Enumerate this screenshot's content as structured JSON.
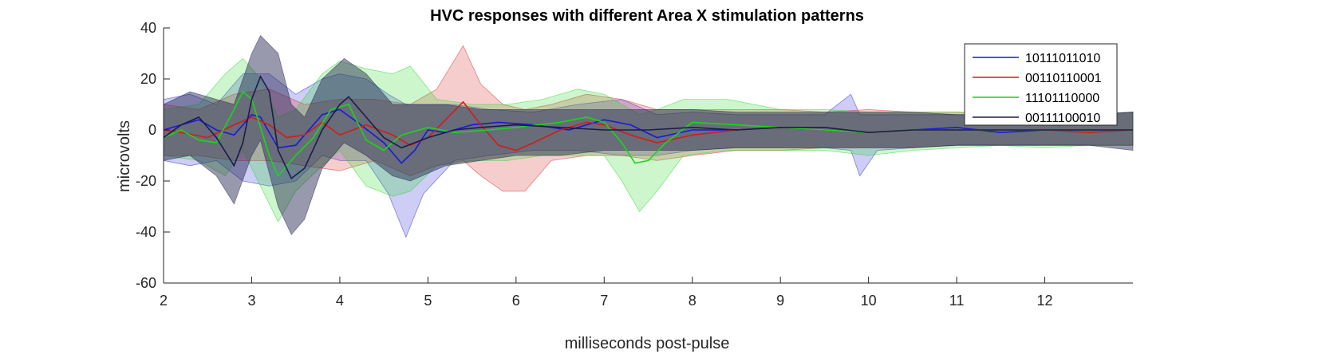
{
  "chart_data": {
    "type": "line",
    "title": "HVC responses with different Area X stimulation patterns",
    "xlabel": "milliseconds post-pulse",
    "ylabel": "microvolts",
    "xlim": [
      2,
      13
    ],
    "ylim": [
      -60,
      40
    ],
    "xticks": [
      2,
      3,
      4,
      5,
      6,
      7,
      8,
      9,
      10,
      11,
      12
    ],
    "yticks": [
      -60,
      -40,
      -20,
      0,
      20,
      40
    ],
    "grid": false,
    "legend": "top-right",
    "series": [
      {
        "name": "10111011010",
        "color": "#1a1ad6",
        "mean": [
          [
            2.0,
            0
          ],
          [
            2.2,
            2
          ],
          [
            2.4,
            4
          ],
          [
            2.6,
            0
          ],
          [
            2.8,
            -2
          ],
          [
            3.0,
            6
          ],
          [
            3.1,
            5
          ],
          [
            3.3,
            -7
          ],
          [
            3.5,
            -6
          ],
          [
            3.8,
            6
          ],
          [
            4.0,
            8
          ],
          [
            4.2,
            3
          ],
          [
            4.5,
            -5
          ],
          [
            4.7,
            -13
          ],
          [
            4.85,
            -8
          ],
          [
            5.0,
            0
          ],
          [
            5.2,
            -1
          ],
          [
            5.5,
            2
          ],
          [
            5.8,
            3
          ],
          [
            6.2,
            2
          ],
          [
            6.6,
            0
          ],
          [
            7.0,
            4
          ],
          [
            7.3,
            2
          ],
          [
            7.6,
            -3
          ],
          [
            8.0,
            0
          ],
          [
            8.5,
            0
          ],
          [
            9.0,
            1
          ],
          [
            9.5,
            0
          ],
          [
            10.0,
            -1
          ],
          [
            10.5,
            0
          ],
          [
            11.0,
            1
          ],
          [
            11.5,
            -1
          ],
          [
            12.0,
            0
          ],
          [
            12.5,
            0
          ],
          [
            13.0,
            0
          ]
        ],
        "band": [
          [
            2.0,
            -12,
            12
          ],
          [
            2.3,
            -14,
            14
          ],
          [
            2.6,
            -12,
            10
          ],
          [
            2.9,
            -20,
            22
          ],
          [
            3.2,
            -22,
            22
          ],
          [
            3.5,
            -20,
            14
          ],
          [
            3.8,
            -10,
            20
          ],
          [
            4.0,
            -12,
            22
          ],
          [
            4.3,
            -12,
            20
          ],
          [
            4.55,
            -25,
            14
          ],
          [
            4.75,
            -42,
            10
          ],
          [
            4.95,
            -25,
            10
          ],
          [
            5.3,
            -12,
            10
          ],
          [
            5.7,
            -10,
            8
          ],
          [
            6.2,
            -8,
            7
          ],
          [
            6.7,
            -8,
            10
          ],
          [
            7.2,
            -10,
            12
          ],
          [
            7.6,
            -10,
            6
          ],
          [
            8.0,
            -8,
            7
          ],
          [
            8.5,
            -7,
            6
          ],
          [
            9.0,
            -7,
            6
          ],
          [
            9.5,
            -7,
            6
          ],
          [
            9.8,
            -8,
            14
          ],
          [
            9.9,
            -18,
            6
          ],
          [
            10.1,
            -8,
            6
          ],
          [
            10.5,
            -7,
            6
          ],
          [
            11.0,
            -6,
            6
          ],
          [
            11.5,
            -6,
            6
          ],
          [
            12.0,
            -6,
            6
          ],
          [
            12.5,
            -6,
            6
          ],
          [
            13.0,
            -6,
            7
          ]
        ]
      },
      {
        "name": "00110110001",
        "color": "#d61a1a",
        "mean": [
          [
            2.0,
            0
          ],
          [
            2.2,
            -1
          ],
          [
            2.5,
            -3
          ],
          [
            2.8,
            2
          ],
          [
            3.0,
            5
          ],
          [
            3.2,
            2
          ],
          [
            3.4,
            -3
          ],
          [
            3.6,
            -2
          ],
          [
            3.8,
            3
          ],
          [
            4.0,
            -2
          ],
          [
            4.3,
            2
          ],
          [
            4.6,
            -2
          ],
          [
            4.8,
            -6
          ],
          [
            5.0,
            -3
          ],
          [
            5.2,
            4
          ],
          [
            5.4,
            11
          ],
          [
            5.6,
            2
          ],
          [
            5.8,
            -6
          ],
          [
            6.0,
            -8
          ],
          [
            6.2,
            -5
          ],
          [
            6.5,
            0
          ],
          [
            6.8,
            3
          ],
          [
            7.0,
            2
          ],
          [
            7.3,
            -2
          ],
          [
            7.6,
            -5
          ],
          [
            8.0,
            -2
          ],
          [
            8.5,
            0
          ],
          [
            9.0,
            1
          ],
          [
            9.5,
            0
          ],
          [
            10.0,
            -1
          ],
          [
            10.5,
            0
          ],
          [
            11.0,
            0
          ],
          [
            11.5,
            0
          ],
          [
            12.0,
            0
          ],
          [
            12.5,
            -1
          ],
          [
            13.0,
            0
          ]
        ],
        "band": [
          [
            2.0,
            -10,
            10
          ],
          [
            2.4,
            -10,
            8
          ],
          [
            2.8,
            -12,
            14
          ],
          [
            3.2,
            -12,
            16
          ],
          [
            3.6,
            -14,
            10
          ],
          [
            4.0,
            -16,
            12
          ],
          [
            4.4,
            -12,
            12
          ],
          [
            4.8,
            -18,
            10
          ],
          [
            5.1,
            -14,
            16
          ],
          [
            5.4,
            -12,
            33
          ],
          [
            5.6,
            -18,
            18
          ],
          [
            5.85,
            -24,
            10
          ],
          [
            6.1,
            -24,
            8
          ],
          [
            6.4,
            -12,
            10
          ],
          [
            6.8,
            -10,
            14
          ],
          [
            7.2,
            -10,
            12
          ],
          [
            7.6,
            -12,
            8
          ],
          [
            8.0,
            -10,
            8
          ],
          [
            8.5,
            -8,
            8
          ],
          [
            9.0,
            -8,
            8
          ],
          [
            9.5,
            -7,
            7
          ],
          [
            10.0,
            -7,
            8
          ],
          [
            10.5,
            -7,
            7
          ],
          [
            11.0,
            -6,
            7
          ],
          [
            11.5,
            -6,
            6
          ],
          [
            12.0,
            -6,
            6
          ],
          [
            12.5,
            -6,
            6
          ],
          [
            13.0,
            -6,
            7
          ]
        ]
      },
      {
        "name": "11101110000",
        "color": "#1ad61a",
        "mean": [
          [
            2.0,
            -3
          ],
          [
            2.2,
            0
          ],
          [
            2.4,
            -4
          ],
          [
            2.6,
            -5
          ],
          [
            2.8,
            8
          ],
          [
            2.9,
            15
          ],
          [
            3.0,
            12
          ],
          [
            3.2,
            -10
          ],
          [
            3.3,
            -18
          ],
          [
            3.5,
            -10
          ],
          [
            3.7,
            -3
          ],
          [
            3.9,
            8
          ],
          [
            4.1,
            10
          ],
          [
            4.3,
            -4
          ],
          [
            4.5,
            -8
          ],
          [
            4.7,
            -2
          ],
          [
            5.0,
            1
          ],
          [
            5.3,
            -1
          ],
          [
            5.7,
            0
          ],
          [
            6.0,
            1
          ],
          [
            6.5,
            3
          ],
          [
            6.8,
            5
          ],
          [
            7.0,
            3
          ],
          [
            7.2,
            -5
          ],
          [
            7.35,
            -13
          ],
          [
            7.5,
            -12
          ],
          [
            7.7,
            -5
          ],
          [
            8.0,
            3
          ],
          [
            8.5,
            2
          ],
          [
            9.0,
            1
          ],
          [
            9.5,
            0
          ],
          [
            10.0,
            -1
          ],
          [
            10.5,
            0
          ],
          [
            11.0,
            0
          ],
          [
            11.5,
            0
          ],
          [
            12.0,
            0
          ],
          [
            12.5,
            0
          ],
          [
            13.0,
            0
          ]
        ],
        "band": [
          [
            2.0,
            -10,
            8
          ],
          [
            2.4,
            -12,
            10
          ],
          [
            2.7,
            -18,
            22
          ],
          [
            2.9,
            -8,
            28
          ],
          [
            3.1,
            -22,
            20
          ],
          [
            3.3,
            -36,
            5
          ],
          [
            3.5,
            -24,
            8
          ],
          [
            3.8,
            -14,
            22
          ],
          [
            4.0,
            -8,
            27
          ],
          [
            4.3,
            -22,
            24
          ],
          [
            4.6,
            -26,
            22
          ],
          [
            4.8,
            -24,
            25
          ],
          [
            5.1,
            -14,
            12
          ],
          [
            5.5,
            -12,
            10
          ],
          [
            5.9,
            -12,
            10
          ],
          [
            6.3,
            -10,
            12
          ],
          [
            6.7,
            -10,
            16
          ],
          [
            7.0,
            -10,
            14
          ],
          [
            7.2,
            -20,
            10
          ],
          [
            7.4,
            -32,
            6
          ],
          [
            7.6,
            -24,
            8
          ],
          [
            7.9,
            -10,
            12
          ],
          [
            8.4,
            -8,
            12
          ],
          [
            9.0,
            -8,
            8
          ],
          [
            9.5,
            -8,
            8
          ],
          [
            10.0,
            -10,
            7
          ],
          [
            10.5,
            -8,
            7
          ],
          [
            11.0,
            -7,
            7
          ],
          [
            11.5,
            -6,
            7
          ],
          [
            12.0,
            -7,
            7
          ],
          [
            12.5,
            -6,
            6
          ],
          [
            13.0,
            -6,
            7
          ]
        ]
      },
      {
        "name": "00111100010",
        "color": "#1c1c4a",
        "mean": [
          [
            2.0,
            -3
          ],
          [
            2.2,
            2
          ],
          [
            2.4,
            5
          ],
          [
            2.6,
            -3
          ],
          [
            2.8,
            -14
          ],
          [
            2.9,
            -5
          ],
          [
            3.0,
            12
          ],
          [
            3.1,
            21
          ],
          [
            3.2,
            15
          ],
          [
            3.3,
            -8
          ],
          [
            3.45,
            -19
          ],
          [
            3.6,
            -15
          ],
          [
            3.8,
            0
          ],
          [
            4.0,
            10
          ],
          [
            4.1,
            13
          ],
          [
            4.3,
            5
          ],
          [
            4.5,
            -3
          ],
          [
            4.7,
            -7
          ],
          [
            5.0,
            -3
          ],
          [
            5.3,
            0
          ],
          [
            5.6,
            1
          ],
          [
            6.0,
            2
          ],
          [
            6.5,
            1
          ],
          [
            7.0,
            0
          ],
          [
            7.5,
            0
          ],
          [
            8.0,
            1
          ],
          [
            8.5,
            0
          ],
          [
            9.0,
            1
          ],
          [
            9.5,
            1
          ],
          [
            10.0,
            -1
          ],
          [
            10.5,
            0
          ],
          [
            11.0,
            0
          ],
          [
            11.5,
            0
          ],
          [
            12.0,
            0
          ],
          [
            12.5,
            0
          ],
          [
            13.0,
            0
          ]
        ],
        "band": [
          [
            2.0,
            -12,
            10
          ],
          [
            2.3,
            -10,
            15
          ],
          [
            2.6,
            -18,
            12
          ],
          [
            2.8,
            -29,
            10
          ],
          [
            3.0,
            -10,
            30
          ],
          [
            3.1,
            -4,
            37
          ],
          [
            3.3,
            -30,
            30
          ],
          [
            3.45,
            -41,
            10
          ],
          [
            3.6,
            -35,
            5
          ],
          [
            3.8,
            -15,
            20
          ],
          [
            4.05,
            -5,
            28
          ],
          [
            4.3,
            -10,
            22
          ],
          [
            4.6,
            -18,
            10
          ],
          [
            4.8,
            -20,
            10
          ],
          [
            5.2,
            -14,
            10
          ],
          [
            5.6,
            -12,
            8
          ],
          [
            6.0,
            -10,
            8
          ],
          [
            6.5,
            -10,
            8
          ],
          [
            7.0,
            -8,
            8
          ],
          [
            7.5,
            -8,
            8
          ],
          [
            8.0,
            -8,
            8
          ],
          [
            8.5,
            -7,
            7
          ],
          [
            9.0,
            -7,
            7
          ],
          [
            9.5,
            -7,
            7
          ],
          [
            10.0,
            -7,
            7
          ],
          [
            10.5,
            -7,
            7
          ],
          [
            11.0,
            -6,
            6
          ],
          [
            11.5,
            -6,
            6
          ],
          [
            12.0,
            -6,
            6
          ],
          [
            12.5,
            -6,
            6
          ],
          [
            13.0,
            -8,
            7
          ]
        ]
      }
    ]
  }
}
